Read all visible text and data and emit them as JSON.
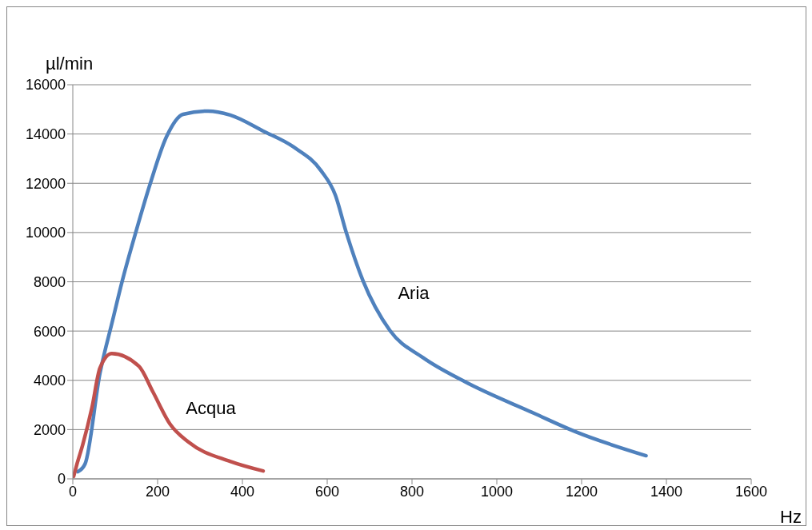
{
  "chart_data": {
    "type": "line",
    "xlabel": "Hz",
    "ylabel": "µl/min",
    "xlim": [
      0,
      1600
    ],
    "xticks": [
      0,
      200,
      400,
      600,
      800,
      1000,
      1200,
      1400,
      1600
    ],
    "ylim": [
      0,
      16000
    ],
    "yticks": [
      0,
      2000,
      4000,
      6000,
      8000,
      10000,
      12000,
      14000,
      16000
    ],
    "grid": "y",
    "marker": "none",
    "line_style": "solid",
    "series": [
      {
        "name": "Aria",
        "color": "#4f81bd",
        "x": [
          12,
          29,
          64,
          94,
          117,
          150,
          182,
          221,
          260,
          319,
          371,
          449,
          521,
          586,
          619,
          645,
          684,
          748,
          826,
          924,
          1088,
          1186,
          1352
        ],
        "values": [
          290,
          610,
          4280,
          6440,
          8060,
          10100,
          11950,
          13890,
          14800,
          14930,
          14770,
          14120,
          13470,
          12500,
          11530,
          10000,
          8060,
          6020,
          4920,
          3950,
          2660,
          1910,
          940
        ]
      },
      {
        "name": "Acqua",
        "color": "#c0504d",
        "x": [
          2,
          10,
          23,
          45,
          64,
          92,
          156,
          189,
          229,
          273,
          371,
          449
        ],
        "values": [
          100,
          610,
          1360,
          2880,
          4500,
          5090,
          4570,
          3530,
          2230,
          1490,
          710,
          320
        ]
      }
    ]
  }
}
